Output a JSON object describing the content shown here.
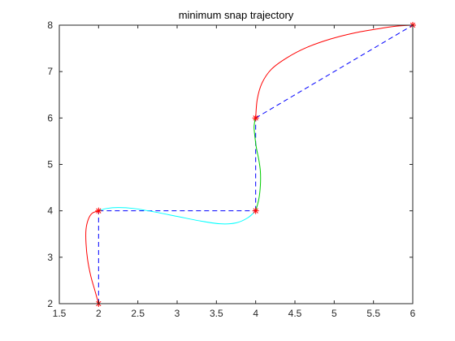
{
  "chart_data": {
    "type": "line",
    "title": "minimum snap trajectory",
    "xlabel": "",
    "ylabel": "",
    "xlim": [
      1.5,
      6
    ],
    "ylim": [
      2,
      8
    ],
    "xticks": [
      "1.5",
      "2",
      "2.5",
      "3",
      "3.5",
      "4",
      "4.5",
      "5",
      "5.5",
      "6"
    ],
    "yticks": [
      "2",
      "3",
      "4",
      "5",
      "6",
      "7",
      "8"
    ],
    "grid": false,
    "waypoints": {
      "x": [
        2,
        2,
        4,
        4,
        6
      ],
      "y": [
        2,
        4,
        4,
        6,
        8
      ],
      "color": "#ff0000",
      "style": "star markers, blue dashed connecting lines",
      "line_color": "#0000ff"
    },
    "series": [
      {
        "color": "#ff0000",
        "x": [
          2.0,
          1.95,
          1.9,
          1.86,
          1.84,
          1.84,
          1.87,
          1.92,
          2.0
        ],
        "y": [
          2.0,
          2.3,
          2.6,
          2.95,
          3.3,
          3.6,
          3.82,
          3.95,
          4.0
        ]
      },
      {
        "color": "#00ffff",
        "x": [
          2.0,
          2.1,
          2.25,
          2.45,
          2.7,
          3.0,
          3.3,
          3.55,
          3.75,
          3.9,
          4.0
        ],
        "y": [
          4.0,
          4.05,
          4.07,
          4.05,
          3.98,
          3.88,
          3.78,
          3.72,
          3.74,
          3.85,
          4.0
        ]
      },
      {
        "color": "#00cc00",
        "x": [
          4.0,
          4.04,
          4.06,
          4.06,
          4.04,
          4.01,
          3.99,
          3.98,
          3.99,
          4.0
        ],
        "y": [
          4.0,
          4.25,
          4.55,
          4.85,
          5.1,
          5.35,
          5.6,
          5.8,
          5.95,
          6.0
        ]
      },
      {
        "color": "#ff0000",
        "x": [
          4.0,
          4.02,
          4.08,
          4.2,
          4.4,
          4.65,
          4.95,
          5.25,
          5.55,
          5.8,
          6.0
        ],
        "y": [
          6.0,
          6.4,
          6.75,
          7.05,
          7.3,
          7.52,
          7.7,
          7.83,
          7.92,
          7.98,
          8.0
        ]
      }
    ]
  }
}
